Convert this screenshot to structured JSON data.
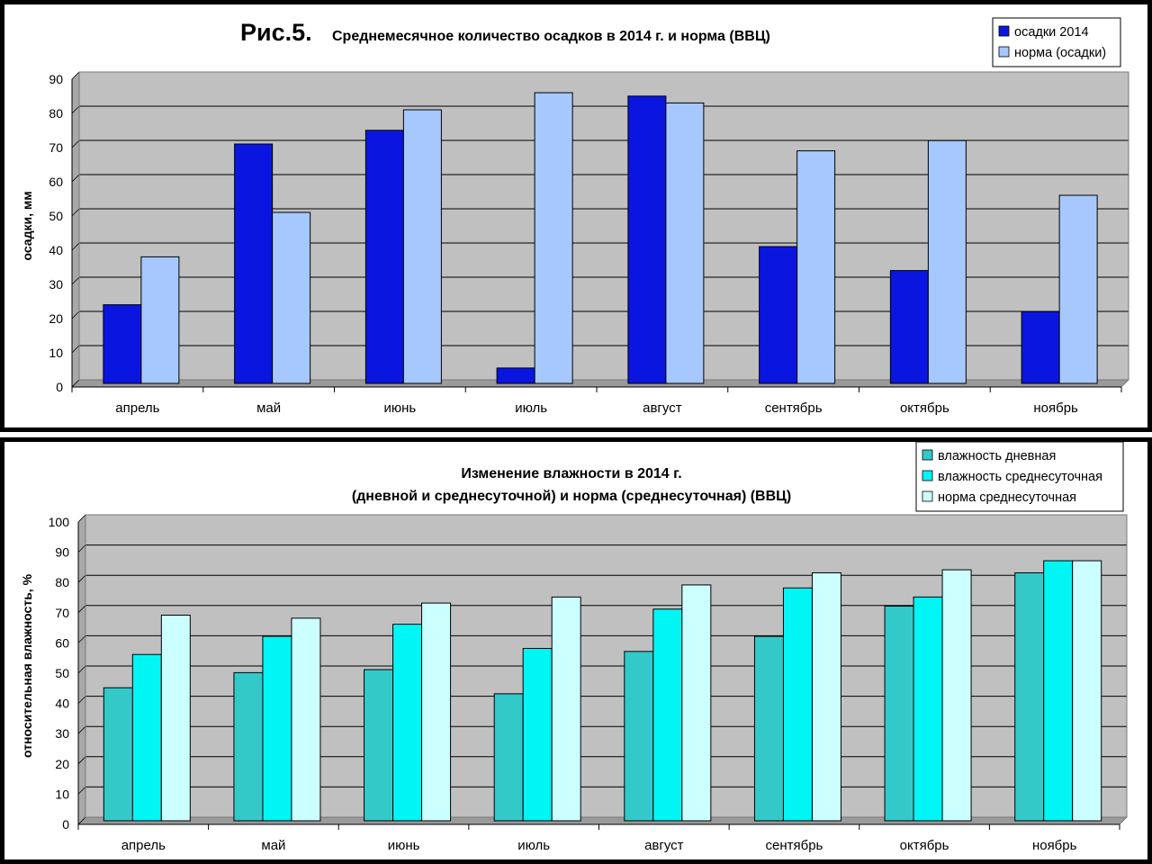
{
  "chart_data": [
    {
      "type": "bar",
      "fig_label": "Рис.5.",
      "title": "Среднемесячное количество осадков в 2014 г. и норма (ВВЦ)",
      "xlabel": "",
      "ylabel": "осадки, мм",
      "ylim": [
        0,
        90
      ],
      "yticks": [
        0,
        10,
        20,
        30,
        40,
        50,
        60,
        70,
        80,
        90
      ],
      "grid": true,
      "legend_position": "top-right",
      "categories": [
        "апрель",
        "май",
        "июнь",
        "июль",
        "август",
        "сентябрь",
        "октябрь",
        "ноябрь"
      ],
      "series": [
        {
          "name": "осадки 2014",
          "color": "#0a16e0",
          "values": [
            23,
            70,
            74,
            4.5,
            84,
            40,
            33,
            21
          ]
        },
        {
          "name": "норма (осадки)",
          "color": "#a6c8ff",
          "values": [
            37,
            50,
            80,
            85,
            82,
            68,
            71,
            55
          ]
        }
      ]
    },
    {
      "type": "bar",
      "title_lines": [
        "Изменение влажности в 2014 г.",
        "(дневной  и среднесуточной) и норма (среднесуточная) (ВВЦ)"
      ],
      "xlabel": "",
      "ylabel": "относительная влажность, %",
      "ylim": [
        0,
        100
      ],
      "yticks": [
        0,
        10,
        20,
        30,
        40,
        50,
        60,
        70,
        80,
        90,
        100
      ],
      "grid": true,
      "legend_position": "top-right",
      "categories": [
        "апрель",
        "май",
        "июнь",
        "июль",
        "август",
        "сентябрь",
        "октябрь",
        "ноябрь"
      ],
      "series": [
        {
          "name": "влажность дневная",
          "color": "#33c9c9",
          "values": [
            44,
            49,
            50,
            42,
            56,
            61,
            71,
            82
          ]
        },
        {
          "name": "влажность среднесуточная",
          "color": "#00f5f5",
          "values": [
            55,
            61,
            65,
            57,
            70,
            77,
            74,
            86
          ]
        },
        {
          "name": "норма  среднесуточная",
          "color": "#ccffff",
          "values": [
            68,
            67,
            72,
            74,
            78,
            82,
            83,
            86
          ]
        }
      ]
    }
  ],
  "plot_bg": "#c0c0c0"
}
